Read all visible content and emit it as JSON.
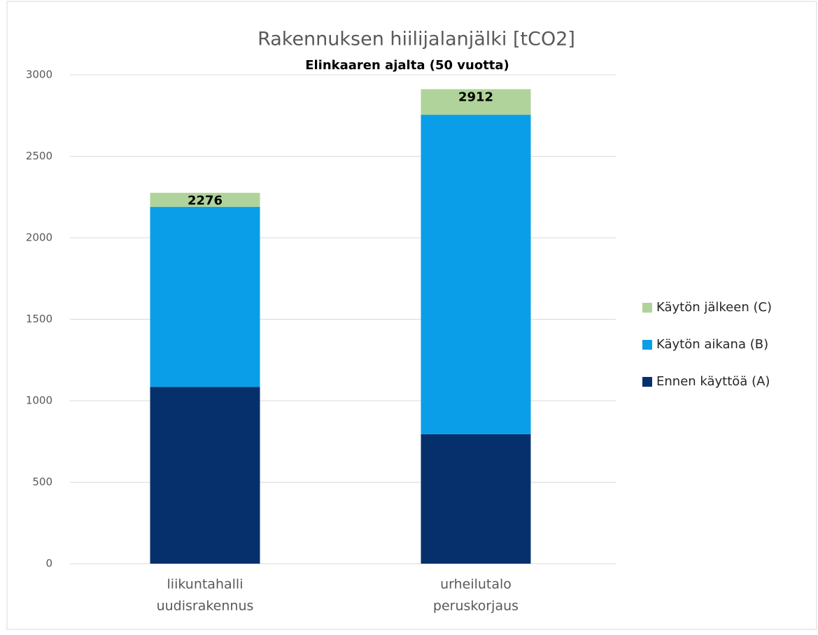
{
  "chart_data": {
    "type": "stacked_bar",
    "title": "Rakennuksen hiilijalanjälki [tCO2]",
    "subtitle": "Elinkaaren ajalta (50 vuotta)",
    "categories": [
      [
        "liikuntahalli",
        "uudisrakennus"
      ],
      [
        "urheilutalo",
        "peruskorjaus"
      ]
    ],
    "series": [
      {
        "name": "Ennen käyttöä (A)",
        "color": "#06306b",
        "values": [
          1085,
          795
        ]
      },
      {
        "name": "Käytön aikana (B)",
        "color": "#0b9ee8",
        "values": [
          1105,
          1960
        ]
      },
      {
        "name": "Käytön jälkeen (C)",
        "color": "#afd39a",
        "values": [
          86,
          157
        ]
      }
    ],
    "totals": [
      2276,
      2912
    ],
    "ylim": [
      0,
      3000
    ],
    "yticks": [
      0,
      500,
      1000,
      1500,
      2000,
      2500,
      3000
    ],
    "grid": true,
    "legend": "right"
  }
}
